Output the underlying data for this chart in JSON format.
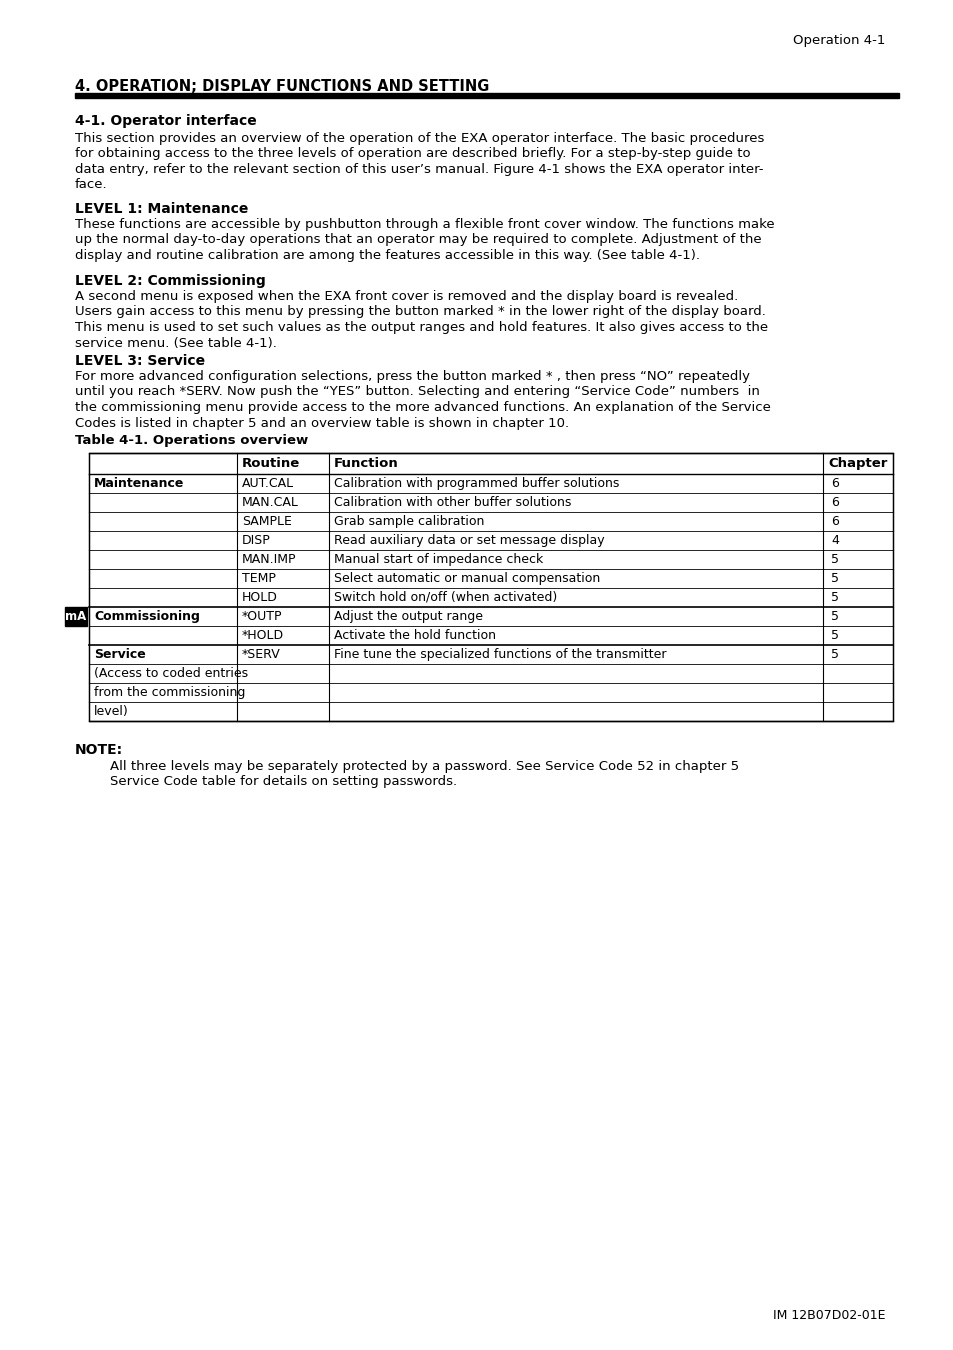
{
  "page_header": "Operation 4-1",
  "section_title": "4. OPERATION; DISPLAY FUNCTIONS AND SETTING",
  "subsection_title": "4-1. Operator interface",
  "para1": "This section provides an overview of the operation of the EXA operator interface. The basic procedures for obtaining access to the three levels of operation are described briefly. For a step-by-step guide to data entry, refer to the relevant section of this user’s manual. Figure 4-1 shows the EXA operator inter-face.",
  "level1_title": "LEVEL 1: Maintenance",
  "level1_text": "These functions are accessible by pushbutton through a flexible front cover window. The functions make up the normal day-to-day operations that an operator may be required to complete. Adjustment of the display and routine calibration are among the features accessible in this way. (See table 4-1).",
  "level2_title": "LEVEL 2: Commissioning",
  "level2_text": "A second menu is exposed when the EXA front cover is removed and the display board is revealed. Users gain access to this menu by pressing the button marked * in the lower right of the display board. This menu is used to set such values as the output ranges and hold features. It also gives access to the service menu. (See table 4-1).",
  "level3_title": "LEVEL 3: Service",
  "level3_text": "For more advanced configuration selections, press the button marked * , then press “NO” repeatedly until you reach *SERV. Now push the “YES” button. Selecting and entering “Service Code” numbers  in the commissioning menu provide access to the more advanced functions. An explanation of the Service Codes is listed in chapter 5 and an overview table is shown in chapter 10.",
  "table_caption": "Table 4-1. Operations overview",
  "table_headers": [
    "",
    "Routine",
    "Function",
    "Chapter"
  ],
  "table_rows": [
    [
      "Maintenance",
      "AUT.CAL",
      "Calibration with programmed buffer solutions",
      "6"
    ],
    [
      "",
      "MAN.CAL",
      "Calibration with other buffer solutions",
      "6"
    ],
    [
      "",
      "SAMPLE",
      "Grab sample calibration",
      "6"
    ],
    [
      "",
      "DISP",
      "Read auxiliary data or set message display",
      "4"
    ],
    [
      "",
      "MAN.IMP",
      "Manual start of impedance check",
      "5"
    ],
    [
      "",
      "TEMP",
      "Select automatic or manual compensation",
      "5"
    ],
    [
      "",
      "HOLD",
      "Switch hold on/off (when activated)",
      "5"
    ],
    [
      "Commissioning",
      "*OUTP",
      "Adjust the output range",
      "5"
    ],
    [
      "",
      "*HOLD",
      "Activate the hold function",
      "5"
    ],
    [
      "Service",
      "*SERV",
      "Fine tune the specialized functions of the transmitter",
      "5"
    ],
    [
      "(Access to coded entries",
      "",
      "",
      ""
    ],
    [
      "from the commissioning",
      "",
      "",
      ""
    ],
    [
      "level)",
      "",
      "",
      ""
    ]
  ],
  "ma_label": "mA",
  "ma_row_index": 7,
  "note_title": "NOTE:",
  "note_line1": "All three levels may be separately protected by a password. See Service Code 52 in chapter 5",
  "note_line2": "Service Code table for details on setting passwords.",
  "footer": "IM 12B07D02-01E",
  "bg_color": "#ffffff",
  "text_color": "#000000"
}
